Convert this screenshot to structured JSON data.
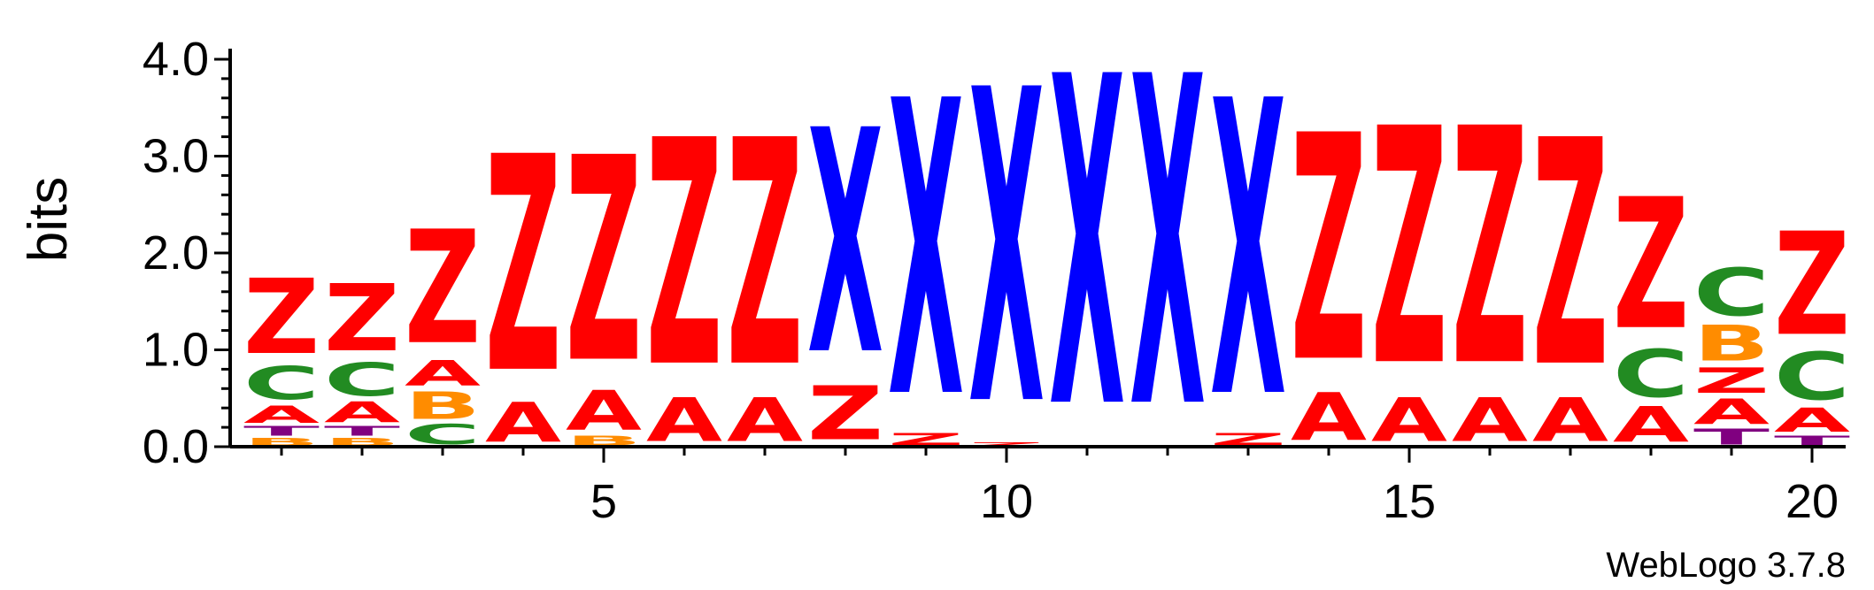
{
  "chart_data": {
    "type": "sequence-logo",
    "title": "",
    "ylabel": "bits",
    "xlabel": "",
    "ylim": [
      0,
      4.0
    ],
    "y_ticks": [
      "0.0",
      "1.0",
      "2.0",
      "3.0",
      "4.0"
    ],
    "x_ticks": [
      "5",
      "10",
      "15",
      "20"
    ],
    "x_tick_values": [
      5,
      10,
      15,
      20
    ],
    "positions": [
      1,
      2,
      3,
      4,
      5,
      6,
      7,
      8,
      9,
      10,
      11,
      12,
      13,
      14,
      15,
      16,
      17,
      18,
      19,
      20
    ],
    "colors": {
      "Z": "#ff0000",
      "A": "#ff0000",
      "X": "#0000ff",
      "C": "#228b22",
      "B": "#ff8c00",
      "T": "#800080"
    },
    "stacks": [
      [
        {
          "l": "B",
          "h": 0.1
        },
        {
          "l": "T",
          "h": 0.12
        },
        {
          "l": "A",
          "h": 0.22
        },
        {
          "l": "C",
          "h": 0.42
        },
        {
          "l": "Z",
          "h": 0.95
        }
      ],
      [
        {
          "l": "B",
          "h": 0.1
        },
        {
          "l": "T",
          "h": 0.12
        },
        {
          "l": "A",
          "h": 0.26
        },
        {
          "l": "C",
          "h": 0.42
        },
        {
          "l": "Z",
          "h": 0.85
        }
      ],
      [
        {
          "l": "C",
          "h": 0.25
        },
        {
          "l": "B",
          "h": 0.35
        },
        {
          "l": "A",
          "h": 0.32
        },
        {
          "l": "Z",
          "h": 1.43
        }
      ],
      [
        {
          "l": "A",
          "h": 0.5
        },
        {
          "l": "Z",
          "h": 2.72
        }
      ],
      [
        {
          "l": "B",
          "h": 0.12
        },
        {
          "l": "A",
          "h": 0.5
        },
        {
          "l": "Z",
          "h": 2.58
        }
      ],
      [
        {
          "l": "A",
          "h": 0.55
        },
        {
          "l": "Z",
          "h": 2.85
        }
      ],
      [
        {
          "l": "A",
          "h": 0.55
        },
        {
          "l": "Z",
          "h": 2.85
        }
      ],
      [
        {
          "l": "Z",
          "h": 0.68
        },
        {
          "l": "X",
          "h": 2.82
        }
      ],
      [
        {
          "l": "Z",
          "h": 0.15
        },
        {
          "l": "X",
          "h": 3.72
        }
      ],
      [
        {
          "l": "Z",
          "h": 0.05
        },
        {
          "l": "X",
          "h": 3.95
        }
      ],
      [
        {
          "l": "X",
          "h": 4.15
        }
      ],
      [
        {
          "l": "X",
          "h": 4.15
        }
      ],
      [
        {
          "l": "Z",
          "h": 0.15
        },
        {
          "l": "X",
          "h": 3.72
        }
      ],
      [
        {
          "l": "A",
          "h": 0.6
        },
        {
          "l": "Z",
          "h": 2.85
        }
      ],
      [
        {
          "l": "A",
          "h": 0.55
        },
        {
          "l": "Z",
          "h": 2.98
        }
      ],
      [
        {
          "l": "A",
          "h": 0.55
        },
        {
          "l": "Z",
          "h": 2.98
        }
      ],
      [
        {
          "l": "A",
          "h": 0.55
        },
        {
          "l": "Z",
          "h": 2.85
        }
      ],
      [
        {
          "l": "A",
          "h": 0.45
        },
        {
          "l": "C",
          "h": 0.6
        },
        {
          "l": "Z",
          "h": 1.65
        }
      ],
      [
        {
          "l": "T",
          "h": 0.2
        },
        {
          "l": "A",
          "h": 0.32
        },
        {
          "l": "Z",
          "h": 0.32
        },
        {
          "l": "B",
          "h": 0.45
        },
        {
          "l": "C",
          "h": 0.6
        }
      ],
      [
        {
          "l": "T",
          "h": 0.12
        },
        {
          "l": "A",
          "h": 0.3
        },
        {
          "l": "C",
          "h": 0.6
        },
        {
          "l": "Z",
          "h": 1.3
        }
      ]
    ]
  },
  "footer": {
    "credit": "WebLogo 3.7.8"
  }
}
